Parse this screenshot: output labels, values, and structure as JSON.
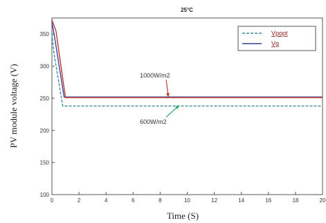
{
  "chart_data": {
    "type": "line",
    "title": "25°C",
    "xlabel": "Time (S)",
    "ylabel": "PV module voltage (V)",
    "xlim": [
      0,
      20
    ],
    "ylim": [
      100,
      375
    ],
    "xticks": [
      0,
      2,
      4,
      6,
      8,
      10,
      12,
      14,
      16,
      18,
      20
    ],
    "yticks": [
      100,
      150,
      200,
      250,
      300,
      350
    ],
    "legend_position": "top-right",
    "series": [
      {
        "name": "Vpopt",
        "color": "#3a8a9a",
        "dash": "dashed",
        "x": [
          0,
          0.15,
          0.8,
          20
        ],
        "y": [
          350,
          320,
          238,
          238
        ]
      },
      {
        "name": "Vg",
        "color": "#3b3f99",
        "dash": "solid",
        "x": [
          0,
          0.2,
          0.9,
          20
        ],
        "y": [
          368,
          345,
          252,
          252
        ]
      },
      {
        "name": "",
        "color": "#c0392b",
        "dash": "solid",
        "x": [
          0,
          0.3,
          1.0,
          20
        ],
        "y": [
          372,
          355,
          251,
          251
        ]
      }
    ],
    "annotations": [
      {
        "text": "1000W/m2",
        "label_x": 6.5,
        "label_y": 282,
        "arrow_to_x": 8.6,
        "arrow_to_y": 252,
        "color": "#c0392b"
      },
      {
        "text": "600W/m2",
        "label_x": 6.5,
        "label_y": 210,
        "arrow_to_x": 9.4,
        "arrow_to_y": 239,
        "color": "#2ea86a"
      }
    ]
  }
}
